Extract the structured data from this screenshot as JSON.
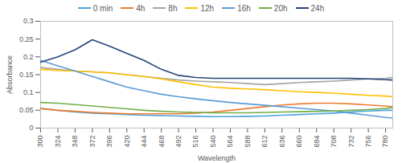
{
  "chart_data": {
    "type": "line",
    "x_label": "Wavelength",
    "y_label": "Absorbance",
    "x": [
      300,
      324,
      348,
      372,
      396,
      420,
      444,
      468,
      492,
      516,
      540,
      564,
      588,
      612,
      636,
      660,
      684,
      708,
      732,
      756,
      780,
      790
    ],
    "xlim": [
      300,
      790
    ],
    "xticks": [
      300,
      324,
      348,
      372,
      396,
      420,
      444,
      468,
      492,
      516,
      540,
      564,
      588,
      612,
      636,
      660,
      684,
      708,
      732,
      756,
      780
    ],
    "ylim": [
      0,
      0.3
    ],
    "yticks": [
      0,
      0.05,
      0.1,
      0.15,
      0.2,
      0.25,
      0.3
    ],
    "grid": false,
    "legend": "top",
    "series": [
      {
        "name": "0 min",
        "color": "#4aa3df",
        "values": [
          0.055,
          0.05,
          0.045,
          0.042,
          0.04,
          0.038,
          0.036,
          0.035,
          0.034,
          0.033,
          0.032,
          0.032,
          0.033,
          0.034,
          0.036,
          0.038,
          0.04,
          0.042,
          0.045,
          0.048,
          0.05,
          0.05
        ]
      },
      {
        "name": "4h",
        "color": "#ed7d31",
        "values": [
          0.055,
          0.05,
          0.047,
          0.044,
          0.042,
          0.04,
          0.04,
          0.04,
          0.04,
          0.042,
          0.045,
          0.05,
          0.055,
          0.06,
          0.065,
          0.068,
          0.07,
          0.07,
          0.068,
          0.065,
          0.062,
          0.06
        ]
      },
      {
        "name": "8h",
        "color": "#a5a5a5",
        "values": [
          0.17,
          0.165,
          0.16,
          0.158,
          0.155,
          0.15,
          0.145,
          0.14,
          0.135,
          0.132,
          0.13,
          0.128,
          0.125,
          0.122,
          0.125,
          0.128,
          0.13,
          0.132,
          0.135,
          0.138,
          0.14,
          0.142
        ]
      },
      {
        "name": "12h",
        "color": "#ffc000",
        "values": [
          0.165,
          0.162,
          0.16,
          0.158,
          0.155,
          0.15,
          0.145,
          0.138,
          0.13,
          0.122,
          0.115,
          0.112,
          0.11,
          0.108,
          0.105,
          0.102,
          0.1,
          0.098,
          0.095,
          0.092,
          0.09,
          0.088
        ]
      },
      {
        "name": "16h",
        "color": "#5b9bd5",
        "values": [
          0.19,
          0.175,
          0.16,
          0.145,
          0.13,
          0.115,
          0.105,
          0.095,
          0.088,
          0.082,
          0.077,
          0.072,
          0.068,
          0.064,
          0.06,
          0.056,
          0.052,
          0.048,
          0.042,
          0.036,
          0.03,
          0.028
        ]
      },
      {
        "name": "20h",
        "color": "#70ad47",
        "values": [
          0.072,
          0.07,
          0.066,
          0.062,
          0.058,
          0.054,
          0.05,
          0.047,
          0.045,
          0.044,
          0.043,
          0.043,
          0.043,
          0.044,
          0.045,
          0.046,
          0.047,
          0.048,
          0.05,
          0.052,
          0.055,
          0.058
        ]
      },
      {
        "name": "24h",
        "color": "#264478",
        "values": [
          0.185,
          0.2,
          0.22,
          0.248,
          0.23,
          0.21,
          0.19,
          0.165,
          0.148,
          0.142,
          0.14,
          0.14,
          0.14,
          0.14,
          0.14,
          0.14,
          0.14,
          0.14,
          0.14,
          0.138,
          0.136,
          0.135
        ]
      }
    ]
  }
}
